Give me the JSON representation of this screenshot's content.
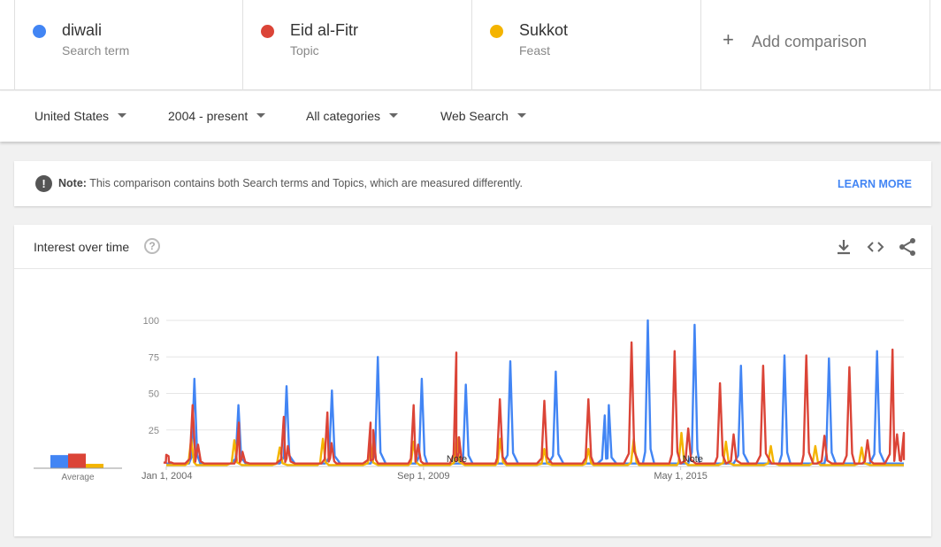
{
  "terms": [
    {
      "name": "diwali",
      "kind": "Search term",
      "color": "#4285f4"
    },
    {
      "name": "Eid al-Fitr",
      "kind": "Topic",
      "color": "#db4437"
    },
    {
      "name": "Sukkot",
      "kind": "Feast",
      "color": "#f4b400"
    }
  ],
  "add_comparison": {
    "label": "Add comparison",
    "icon": "plus-icon"
  },
  "filters": {
    "region": "United States",
    "time": "2004 - present",
    "category": "All categories",
    "search_type": "Web Search"
  },
  "note": {
    "icon": "exclamation-icon",
    "bold": "Note:",
    "text": " This comparison contains both Search terms and Topics, which are measured differently.",
    "link": "LEARN MORE"
  },
  "card": {
    "title": "Interest over time",
    "help_icon": "question-icon",
    "tools": [
      "download-icon",
      "embed-icon",
      "share-icon"
    ],
    "average_label": "Average"
  },
  "chart_data": {
    "type": "line",
    "title": "",
    "xlabel": "",
    "ylabel": "",
    "ylim": [
      0,
      100
    ],
    "yticks": [
      25,
      50,
      75,
      100
    ],
    "xtick_labels": [
      "Jan 1, 2004",
      "Sep 1, 2009",
      "May 1, 2015"
    ],
    "xtick_years": [
      2004.0,
      2009.667,
      2015.333
    ],
    "x_range": [
      2004.0,
      2020.25
    ],
    "grid": true,
    "legend": "top",
    "note_markers": [
      {
        "label": "Note",
        "x": 2010.4
      },
      {
        "label": "Note",
        "x": 2015.6
      }
    ],
    "average": [
      {
        "name": "diwali",
        "value": 9,
        "color": "#4285f4"
      },
      {
        "name": "Eid al-Fitr",
        "value": 10,
        "color": "#db4437"
      },
      {
        "name": "Sukkot",
        "value": 3,
        "color": "#f4b400"
      }
    ],
    "series": [
      {
        "name": "diwali",
        "color": "#4285f4",
        "baseline": 2,
        "points": [
          [
            2004.62,
            60
          ],
          [
            2005.59,
            42
          ],
          [
            2006.65,
            55
          ],
          [
            2007.65,
            52
          ],
          [
            2008.66,
            75
          ],
          [
            2009.63,
            60
          ],
          [
            2010.6,
            56
          ],
          [
            2011.58,
            72
          ],
          [
            2012.58,
            65
          ],
          [
            2013.66,
            35
          ],
          [
            2013.75,
            42
          ],
          [
            2014.61,
            100
          ],
          [
            2015.64,
            97
          ],
          [
            2016.66,
            69
          ],
          [
            2017.62,
            76
          ],
          [
            2018.6,
            74
          ],
          [
            2019.66,
            79
          ]
        ]
      },
      {
        "name": "Eid al-Fitr",
        "color": "#db4437",
        "baseline": 2,
        "points": [
          [
            2004.0,
            8
          ],
          [
            2004.05,
            7
          ],
          [
            2004.58,
            42
          ],
          [
            2004.7,
            15
          ],
          [
            2005.6,
            30
          ],
          [
            2005.68,
            10
          ],
          [
            2006.59,
            34
          ],
          [
            2006.68,
            14
          ],
          [
            2007.55,
            37
          ],
          [
            2007.64,
            16
          ],
          [
            2008.5,
            30
          ],
          [
            2008.56,
            25
          ],
          [
            2009.45,
            42
          ],
          [
            2009.55,
            15
          ],
          [
            2010.39,
            78
          ],
          [
            2010.45,
            20
          ],
          [
            2011.35,
            46
          ],
          [
            2012.33,
            45
          ],
          [
            2013.3,
            46
          ],
          [
            2014.25,
            85
          ],
          [
            2015.2,
            79
          ],
          [
            2015.5,
            26
          ],
          [
            2016.2,
            57
          ],
          [
            2016.5,
            22
          ],
          [
            2017.15,
            69
          ],
          [
            2018.1,
            76
          ],
          [
            2018.5,
            21
          ],
          [
            2019.05,
            68
          ],
          [
            2019.45,
            18
          ],
          [
            2020.0,
            80
          ],
          [
            2020.1,
            22
          ],
          [
            2020.25,
            23
          ]
        ]
      },
      {
        "name": "Sukkot",
        "color": "#f4b400",
        "baseline": 1,
        "points": [
          [
            2004.55,
            19
          ],
          [
            2005.5,
            18
          ],
          [
            2006.5,
            13
          ],
          [
            2007.45,
            19
          ],
          [
            2008.5,
            16
          ],
          [
            2009.45,
            17
          ],
          [
            2010.4,
            20
          ],
          [
            2011.36,
            19
          ],
          [
            2012.33,
            12
          ],
          [
            2013.3,
            12
          ],
          [
            2014.3,
            19
          ],
          [
            2015.35,
            23
          ],
          [
            2016.33,
            17
          ],
          [
            2017.32,
            14
          ],
          [
            2018.3,
            14
          ],
          [
            2019.32,
            13
          ]
        ]
      }
    ]
  }
}
